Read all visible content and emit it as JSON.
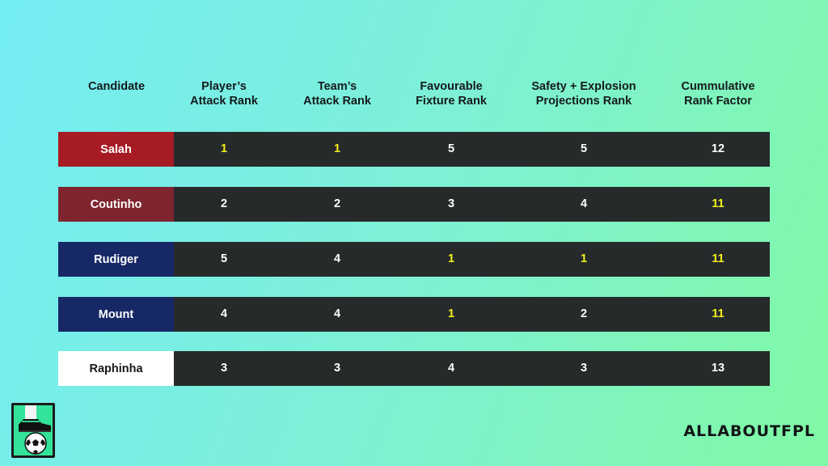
{
  "headers": [
    "Candidate",
    "Player’s\nAttack Rank",
    "Team’s\nAttack Rank",
    "Favourable\nFixture Rank",
    "Safety + Explosion\nProjections Rank",
    "Cummulative\nRank Factor"
  ],
  "rows": [
    {
      "name": "Salah",
      "name_bg": "#a71b24",
      "name_color": "#ffffff",
      "values": [
        "1",
        "1",
        "5",
        "5",
        "12"
      ],
      "highlight": [
        true,
        true,
        false,
        false,
        false
      ]
    },
    {
      "name": "Coutinho",
      "name_bg": "#7f2530",
      "name_color": "#ffffff",
      "values": [
        "2",
        "2",
        "3",
        "4",
        "11"
      ],
      "highlight": [
        false,
        false,
        false,
        false,
        true
      ]
    },
    {
      "name": "Rudiger",
      "name_bg": "#172867",
      "name_color": "#ffffff",
      "values": [
        "5",
        "4",
        "1",
        "1",
        "11"
      ],
      "highlight": [
        false,
        false,
        true,
        true,
        true
      ]
    },
    {
      "name": "Mount",
      "name_bg": "#172867",
      "name_color": "#ffffff",
      "values": [
        "4",
        "4",
        "1",
        "2",
        "11"
      ],
      "highlight": [
        false,
        false,
        true,
        false,
        true
      ]
    },
    {
      "name": "Raphinha",
      "name_bg": "#ffffff",
      "name_color": "#151a1c",
      "values": [
        "3",
        "3",
        "4",
        "3",
        "13"
      ],
      "highlight": [
        false,
        false,
        false,
        false,
        false
      ]
    }
  ],
  "colors": {
    "value_text": "#ffffff",
    "highlight_text": "#f3f21b",
    "row_bg": "#262a2b"
  },
  "brand": {
    "logo_icon": "boot-and-football-icon",
    "text": "ALLABOUTFPL"
  }
}
